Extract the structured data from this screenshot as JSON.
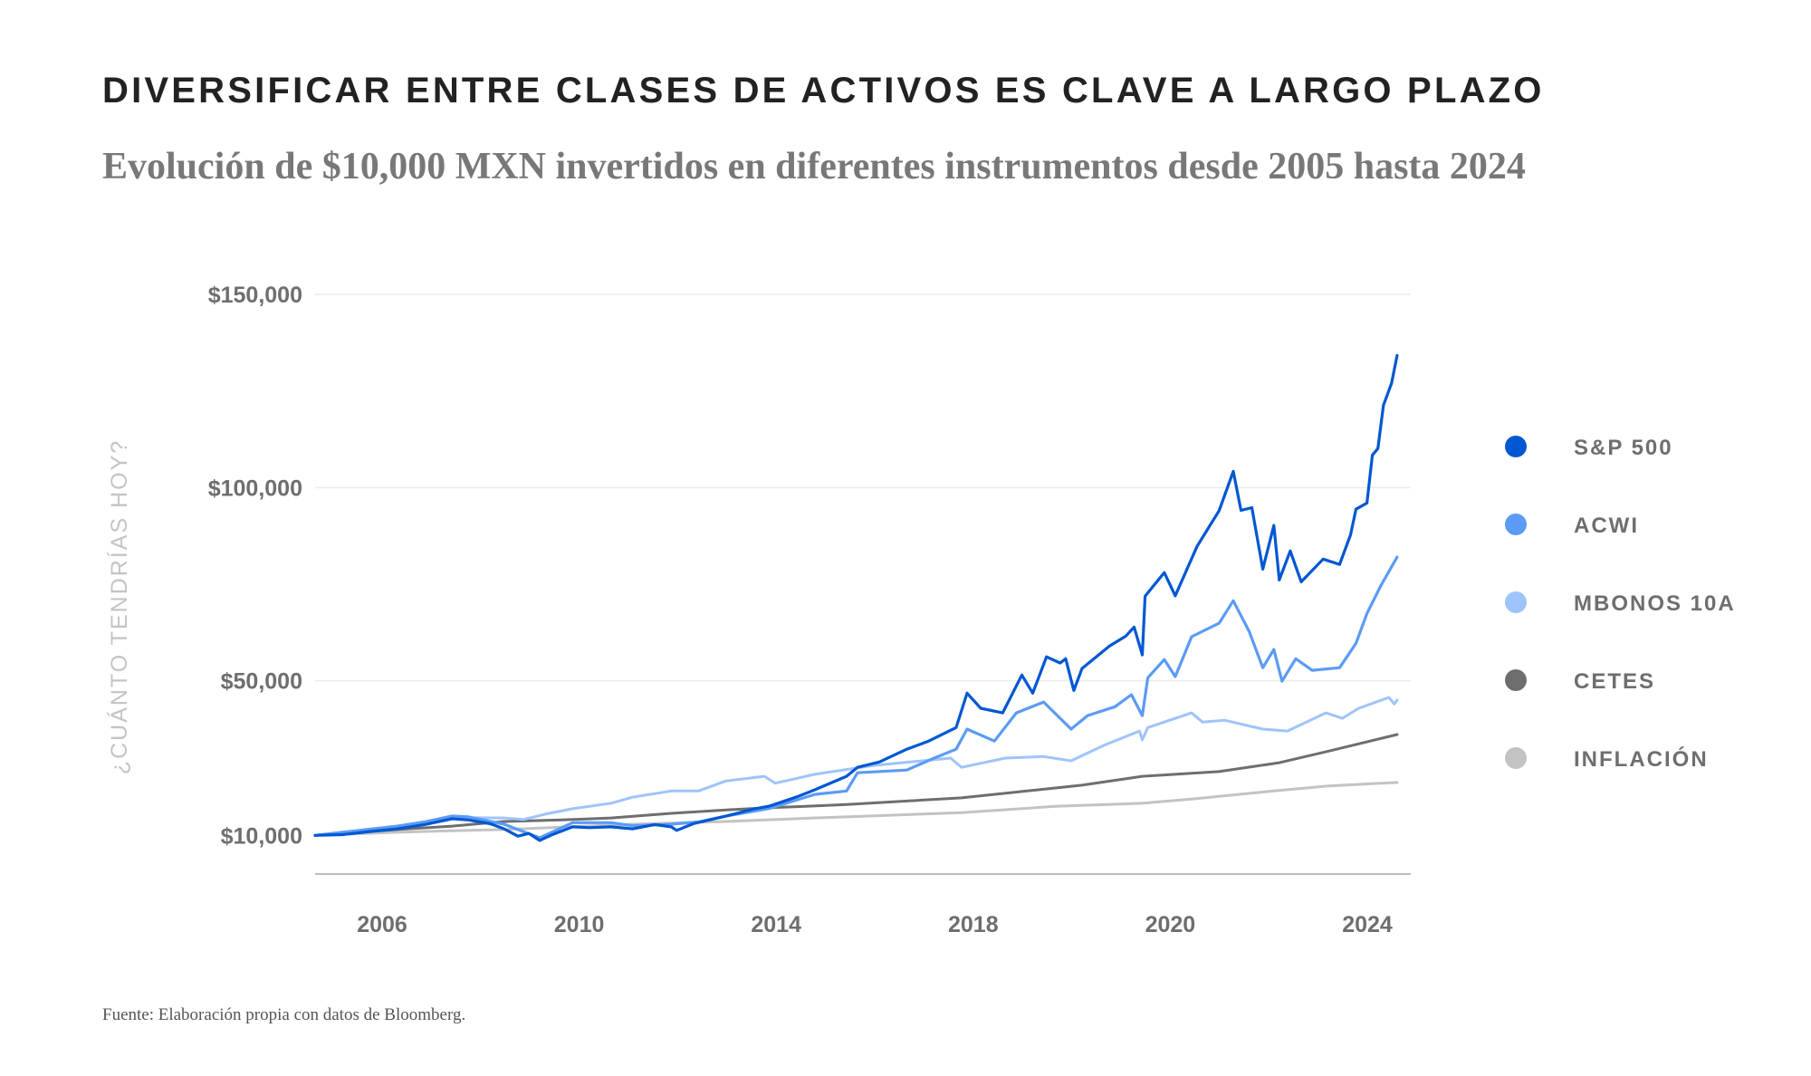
{
  "header": {
    "title": "DIVERSIFICAR ENTRE CLASES DE ACTIVOS ES CLAVE A LARGO PLAZO",
    "subtitle": "Evolución de $10,000 MXN invertidos en diferentes instrumentos desde 2005 hasta 2024"
  },
  "footer": {
    "source": "Fuente: Elaboración propia con datos de Bloomberg."
  },
  "chart_data": {
    "type": "line",
    "title": "DIVERSIFICAR ENTRE CLASES DE ACTIVOS ES CLAVE A LARGO PLAZO",
    "subtitle": "Evolución de $10,000 MXN invertidos en diferentes instrumentos desde 2005 hasta 2024",
    "xlabel": "",
    "ylabel": "¿CUÁNTO TENDRÍAS HOY?",
    "xlim": [
      2005.0,
      2025.0
    ],
    "ylim": [
      0,
      150000
    ],
    "x_tick_labels": [
      "2006",
      "2010",
      "2014",
      "2018",
      "2020",
      "2024"
    ],
    "y_ticks": [
      {
        "value": 10000,
        "label": "$10,000"
      },
      {
        "value": 50000,
        "label": "$50,000"
      },
      {
        "value": 100000,
        "label": "$100,000"
      },
      {
        "value": 150000,
        "label": "$150,000"
      }
    ],
    "grid": true,
    "legend_position": "right",
    "series": [
      {
        "name": "S&P 500",
        "color": "#0057d2",
        "points": [
          [
            2005.0,
            10000
          ],
          [
            2005.5,
            10200
          ],
          [
            2006.0,
            11000
          ],
          [
            2006.5,
            11700
          ],
          [
            2007.0,
            12800
          ],
          [
            2007.5,
            14300
          ],
          [
            2007.8,
            14000
          ],
          [
            2008.2,
            13000
          ],
          [
            2008.45,
            11700
          ],
          [
            2008.7,
            9800
          ],
          [
            2008.9,
            10500
          ],
          [
            2009.1,
            8700
          ],
          [
            2009.3,
            10000
          ],
          [
            2009.7,
            12200
          ],
          [
            2010.0,
            12000
          ],
          [
            2010.4,
            12200
          ],
          [
            2010.8,
            11700
          ],
          [
            2011.2,
            12800
          ],
          [
            2011.5,
            12200
          ],
          [
            2011.6,
            11300
          ],
          [
            2011.9,
            13000
          ],
          [
            2012.5,
            15000
          ],
          [
            2013.0,
            16800
          ],
          [
            2013.3,
            17600
          ],
          [
            2013.8,
            20000
          ],
          [
            2014.12,
            21800
          ],
          [
            2014.7,
            25300
          ],
          [
            2014.9,
            27600
          ],
          [
            2015.3,
            29000
          ],
          [
            2015.8,
            32300
          ],
          [
            2016.2,
            34400
          ],
          [
            2016.7,
            37900
          ],
          [
            2016.9,
            46800
          ],
          [
            2017.15,
            42900
          ],
          [
            2017.55,
            41700
          ],
          [
            2017.9,
            51500
          ],
          [
            2018.1,
            46800
          ],
          [
            2018.35,
            56200
          ],
          [
            2018.6,
            54600
          ],
          [
            2018.7,
            55700
          ],
          [
            2018.85,
            47500
          ],
          [
            2019.0,
            53200
          ],
          [
            2019.5,
            59000
          ],
          [
            2019.8,
            61600
          ],
          [
            2019.95,
            63900
          ],
          [
            2020.1,
            56700
          ],
          [
            2020.15,
            71900
          ],
          [
            2020.5,
            78000
          ],
          [
            2020.7,
            72000
          ],
          [
            2021.1,
            84800
          ],
          [
            2021.5,
            94000
          ],
          [
            2021.76,
            104200
          ],
          [
            2021.9,
            94100
          ],
          [
            2022.1,
            94800
          ],
          [
            2022.3,
            78900
          ],
          [
            2022.5,
            90200
          ],
          [
            2022.6,
            76100
          ],
          [
            2022.8,
            83600
          ],
          [
            2023.0,
            75600
          ],
          [
            2023.4,
            81500
          ],
          [
            2023.7,
            80100
          ],
          [
            2023.9,
            87800
          ],
          [
            2024.0,
            94400
          ],
          [
            2024.2,
            96000
          ],
          [
            2024.3,
            108400
          ],
          [
            2024.4,
            110100
          ],
          [
            2024.5,
            121300
          ],
          [
            2024.65,
            127000
          ],
          [
            2024.75,
            134200
          ]
        ]
      },
      {
        "name": "ACWI",
        "color": "#5b9bf5",
        "points": [
          [
            2005.0,
            10000
          ],
          [
            2005.5,
            10800
          ],
          [
            2006.0,
            11600
          ],
          [
            2006.5,
            12400
          ],
          [
            2007.0,
            13500
          ],
          [
            2007.5,
            15000
          ],
          [
            2007.8,
            14800
          ],
          [
            2008.45,
            12900
          ],
          [
            2008.8,
            11000
          ],
          [
            2009.1,
            9400
          ],
          [
            2009.7,
            13300
          ],
          [
            2010.4,
            13300
          ],
          [
            2010.8,
            12500
          ],
          [
            2011.5,
            12900
          ],
          [
            2012.0,
            13500
          ],
          [
            2012.5,
            15000
          ],
          [
            2013.3,
            17000
          ],
          [
            2014.12,
            20600
          ],
          [
            2014.7,
            21500
          ],
          [
            2014.9,
            26200
          ],
          [
            2015.8,
            26900
          ],
          [
            2016.3,
            30000
          ],
          [
            2016.7,
            32300
          ],
          [
            2016.9,
            37500
          ],
          [
            2017.4,
            34400
          ],
          [
            2017.8,
            41700
          ],
          [
            2018.3,
            44500
          ],
          [
            2018.8,
            37500
          ],
          [
            2019.1,
            41000
          ],
          [
            2019.6,
            43300
          ],
          [
            2019.9,
            46400
          ],
          [
            2020.1,
            41000
          ],
          [
            2020.2,
            50800
          ],
          [
            2020.5,
            55500
          ],
          [
            2020.7,
            51100
          ],
          [
            2021.0,
            61400
          ],
          [
            2021.5,
            64900
          ],
          [
            2021.76,
            70700
          ],
          [
            2022.05,
            62800
          ],
          [
            2022.3,
            53400
          ],
          [
            2022.5,
            58100
          ],
          [
            2022.65,
            49900
          ],
          [
            2022.9,
            55700
          ],
          [
            2023.2,
            52700
          ],
          [
            2023.7,
            53400
          ],
          [
            2024.0,
            59700
          ],
          [
            2024.2,
            67400
          ],
          [
            2024.45,
            74500
          ],
          [
            2024.75,
            82000
          ]
        ]
      },
      {
        "name": "MBONOS 10A",
        "color": "#9ec4fb",
        "points": [
          [
            2005.0,
            10000
          ],
          [
            2006.0,
            11500
          ],
          [
            2006.5,
            12400
          ],
          [
            2007.5,
            14600
          ],
          [
            2008.45,
            14500
          ],
          [
            2008.8,
            14100
          ],
          [
            2009.2,
            15500
          ],
          [
            2009.7,
            16900
          ],
          [
            2010.4,
            18300
          ],
          [
            2010.8,
            19900
          ],
          [
            2011.5,
            21500
          ],
          [
            2012.0,
            21500
          ],
          [
            2012.5,
            24100
          ],
          [
            2013.2,
            25300
          ],
          [
            2013.4,
            23500
          ],
          [
            2014.12,
            25800
          ],
          [
            2015.2,
            28100
          ],
          [
            2016.6,
            30000
          ],
          [
            2016.8,
            27600
          ],
          [
            2017.6,
            30000
          ],
          [
            2018.3,
            30400
          ],
          [
            2018.8,
            29300
          ],
          [
            2019.4,
            33300
          ],
          [
            2020.05,
            37000
          ],
          [
            2020.1,
            34700
          ],
          [
            2020.2,
            37900
          ],
          [
            2021.0,
            41700
          ],
          [
            2021.2,
            39300
          ],
          [
            2021.6,
            39800
          ],
          [
            2022.3,
            37500
          ],
          [
            2022.75,
            37000
          ],
          [
            2023.45,
            41700
          ],
          [
            2023.75,
            40300
          ],
          [
            2024.05,
            42900
          ],
          [
            2024.6,
            45700
          ],
          [
            2024.7,
            44000
          ],
          [
            2024.75,
            45000
          ]
        ]
      },
      {
        "name": "CETES",
        "color": "#6e6e6e",
        "points": [
          [
            2005.0,
            10000
          ],
          [
            2006.5,
            11500
          ],
          [
            2007.5,
            12400
          ],
          [
            2008.45,
            13600
          ],
          [
            2009.5,
            14000
          ],
          [
            2010.4,
            14500
          ],
          [
            2011.5,
            15700
          ],
          [
            2012.5,
            16600
          ],
          [
            2013.2,
            17100
          ],
          [
            2014.1,
            17600
          ],
          [
            2014.7,
            18000
          ],
          [
            2016.8,
            19700
          ],
          [
            2019.0,
            23000
          ],
          [
            2020.1,
            25300
          ],
          [
            2020.7,
            25800
          ],
          [
            2021.5,
            26500
          ],
          [
            2022.6,
            28800
          ],
          [
            2023.5,
            31800
          ],
          [
            2024.75,
            36100
          ]
        ]
      },
      {
        "name": "INFLACIÓN",
        "color": "#c3c3c3",
        "points": [
          [
            2005.0,
            10000
          ],
          [
            2006.5,
            10800
          ],
          [
            2007.5,
            11200
          ],
          [
            2008.45,
            11500
          ],
          [
            2010.8,
            12900
          ],
          [
            2012.5,
            13600
          ],
          [
            2014.1,
            14500
          ],
          [
            2014.7,
            14800
          ],
          [
            2016.8,
            15900
          ],
          [
            2018.5,
            17500
          ],
          [
            2020.1,
            18300
          ],
          [
            2021.0,
            19400
          ],
          [
            2022.5,
            21500
          ],
          [
            2023.5,
            22800
          ],
          [
            2024.75,
            23700
          ]
        ]
      }
    ]
  }
}
